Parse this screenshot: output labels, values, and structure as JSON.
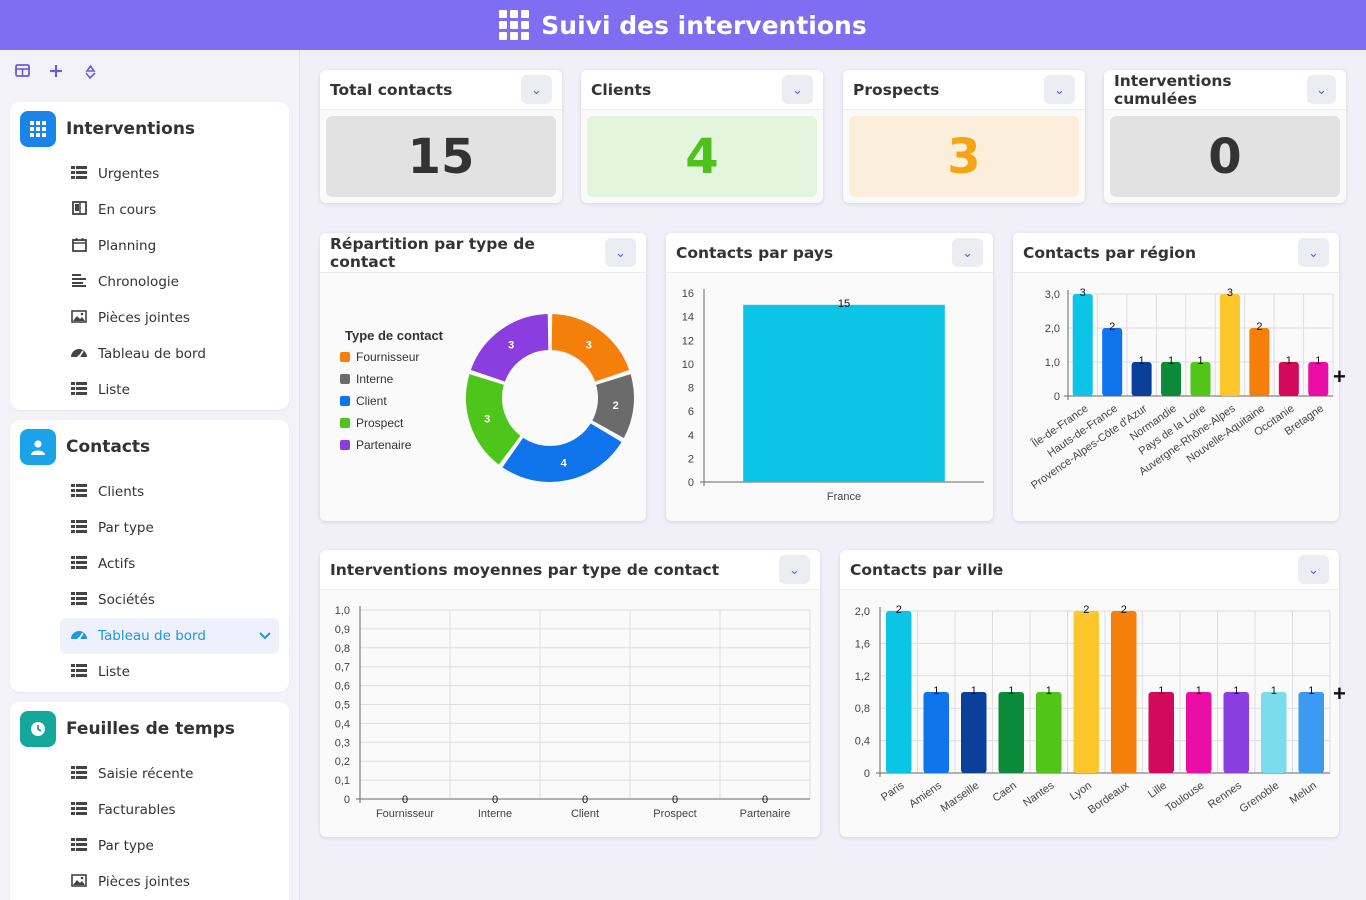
{
  "header": {
    "title": "Suivi des interventions",
    "icon": "apps-grid-icon"
  },
  "toolbar": {
    "icons": [
      "panel-icon",
      "plus-icon",
      "refresh-icon"
    ]
  },
  "sidebar": {
    "groups": [
      {
        "title": "Interventions",
        "icon": "grid-icon",
        "color": "#1a84e8",
        "items": [
          {
            "label": "Urgentes",
            "icon": "table-icon"
          },
          {
            "label": "En cours",
            "icon": "kanban-icon"
          },
          {
            "label": "Planning",
            "icon": "calendar-icon"
          },
          {
            "label": "Chronologie",
            "icon": "timeline-icon"
          },
          {
            "label": "Pièces jointes",
            "icon": "image-icon"
          },
          {
            "label": "Tableau de bord",
            "icon": "gauge-icon"
          },
          {
            "label": "Liste",
            "icon": "table-icon"
          }
        ]
      },
      {
        "title": "Contacts",
        "icon": "user-icon",
        "color": "#1aa3e8",
        "items": [
          {
            "label": "Clients",
            "icon": "table-icon"
          },
          {
            "label": "Par type",
            "icon": "table-icon"
          },
          {
            "label": "Actifs",
            "icon": "table-icon"
          },
          {
            "label": "Sociétés",
            "icon": "table-icon"
          },
          {
            "label": "Tableau de bord",
            "icon": "gauge-icon",
            "active": true
          },
          {
            "label": "Liste",
            "icon": "table-icon"
          }
        ]
      },
      {
        "title": "Feuilles de temps",
        "icon": "clock-icon",
        "color": "#14a89a",
        "items": [
          {
            "label": "Saisie récente",
            "icon": "table-icon"
          },
          {
            "label": "Facturables",
            "icon": "table-icon"
          },
          {
            "label": "Par type",
            "icon": "table-icon"
          },
          {
            "label": "Pièces jointes",
            "icon": "image-icon"
          }
        ]
      }
    ]
  },
  "kpis": [
    {
      "title": "Total contacts",
      "value": "15",
      "bg": "#e2e2e2",
      "color": "#333333"
    },
    {
      "title": "Clients",
      "value": "4",
      "bg": "#e3f5dc",
      "color": "#4cc21a"
    },
    {
      "title": "Prospects",
      "value": "3",
      "bg": "#fbefdc",
      "color": "#f5a413"
    },
    {
      "title": "Interventions cumulées",
      "value": "0",
      "bg": "#e2e2e2",
      "color": "#333333"
    }
  ],
  "widgets": {
    "donut": "Répartition par type de contact",
    "pays": "Contacts par pays",
    "region": "Contacts par région",
    "moyennes": "Interventions moyennes par type de contact",
    "ville": "Contacts par ville"
  },
  "chart_data": [
    {
      "type": "pie",
      "title": "Répartition par type de contact",
      "legend_title": "Type de contact",
      "legend_position": "left",
      "categories": [
        "Fournisseur",
        "Interne",
        "Client",
        "Prospect",
        "Partenaire"
      ],
      "values": [
        3,
        2,
        4,
        3,
        3
      ],
      "colors": [
        "#f57f0b",
        "#6b6b6b",
        "#0f74ec",
        "#4ec51b",
        "#8a3ee0"
      ]
    },
    {
      "type": "bar",
      "title": "Contacts par pays",
      "categories": [
        "France"
      ],
      "values": [
        15
      ],
      "ylim": [
        0,
        16
      ],
      "yticks": [
        0,
        2,
        4,
        6,
        8,
        10,
        12,
        14,
        16
      ],
      "colors": [
        "#0cc4e6"
      ],
      "grid": false
    },
    {
      "type": "bar",
      "title": "Contacts par région",
      "categories": [
        "Île-de-France",
        "Hauts-de-France",
        "Provence-Alpes-Côte d'Azur",
        "Normandie",
        "Pays de la Loire",
        "Auvergne-Rhône-Alpes",
        "Nouvelle-Aquitaine",
        "Occitanie",
        "Bretagne"
      ],
      "values": [
        3,
        2,
        1,
        1,
        1,
        3,
        2,
        1,
        1
      ],
      "ylim": [
        0,
        3
      ],
      "yticks": [
        "0",
        "1,0",
        "2,0",
        "3,0"
      ],
      "colors": [
        "#0cc4e6",
        "#0f74ec",
        "#0a3f9a",
        "#0b8a3a",
        "#52c51b",
        "#fdc62c",
        "#f57f0b",
        "#d20a5a",
        "#ea0ea6"
      ],
      "grid": true
    },
    {
      "type": "bar",
      "title": "Interventions moyennes par type de contact",
      "categories": [
        "Fournisseur",
        "Interne",
        "Client",
        "Prospect",
        "Partenaire"
      ],
      "values": [
        0,
        0,
        0,
        0,
        0
      ],
      "ylim": [
        0,
        1
      ],
      "yticks": [
        "0",
        "0,1",
        "0,2",
        "0,3",
        "0,4",
        "0,5",
        "0,6",
        "0,7",
        "0,8",
        "0,9",
        "1,0"
      ],
      "grid": true
    },
    {
      "type": "bar",
      "title": "Contacts par ville",
      "categories": [
        "Paris",
        "Amiens",
        "Marseille",
        "Caen",
        "Nantes",
        "Lyon",
        "Bordeaux",
        "Lille",
        "Toulouse",
        "Rennes",
        "Grenoble",
        "Melun"
      ],
      "values": [
        2,
        1,
        1,
        1,
        1,
        2,
        2,
        1,
        1,
        1,
        1,
        1
      ],
      "ylim": [
        0,
        2
      ],
      "yticks": [
        "0",
        "0,4",
        "0,8",
        "1,2",
        "1,6",
        "2,0"
      ],
      "colors": [
        "#0cc4e6",
        "#0f74ec",
        "#0a3f9a",
        "#0b8a3a",
        "#52c51b",
        "#fdc62c",
        "#f57f0b",
        "#d20a5a",
        "#ea0ea6",
        "#8a3ee0",
        "#7adcec",
        "#3c9af0"
      ],
      "grid": true
    }
  ]
}
